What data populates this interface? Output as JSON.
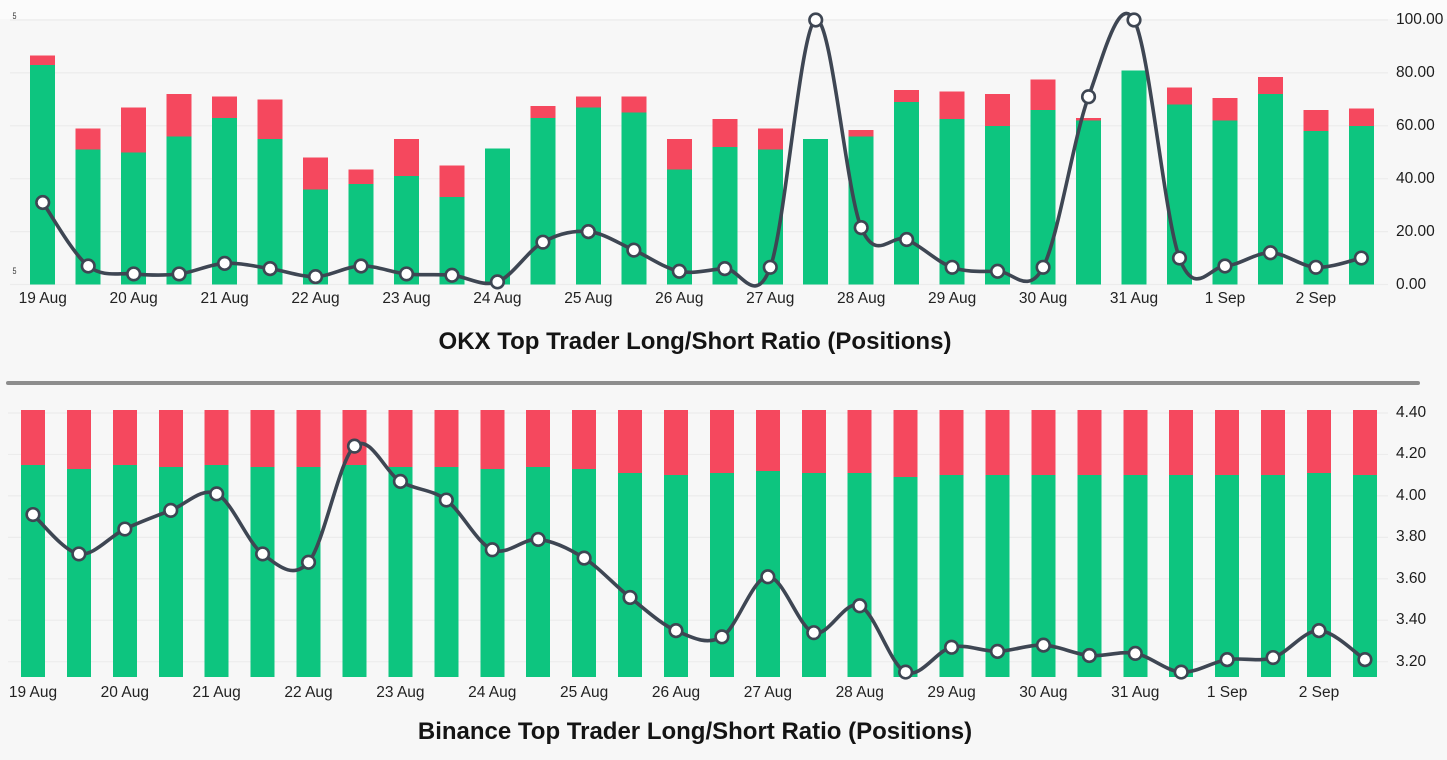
{
  "page": {
    "background": "#f7f7f7",
    "top_strip": "#fbfbfb"
  },
  "colors": {
    "long_green": "#0dc57f",
    "short_red": "#f5485e",
    "line": "#3e4653",
    "marker_fill": "#ffffff",
    "grid": "#ececec",
    "axis_text": "#1c1c1c",
    "title_text": "#141414",
    "divider": "#8d8d8d"
  },
  "axis_fragments": {
    "top": "5",
    "bottom": "5"
  },
  "chart_data": [
    {
      "id": "okx",
      "type": "bar",
      "subtype": "stacked-bars-with-line-overlay",
      "title": "OKX Top Trader Long/Short Ratio (Positions)",
      "x_tick_labels": [
        "19 Aug",
        "20 Aug",
        "21 Aug",
        "22 Aug",
        "23 Aug",
        "24 Aug",
        "25 Aug",
        "26 Aug",
        "27 Aug",
        "28 Aug",
        "29 Aug",
        "30 Aug",
        "31 Aug",
        "1 Sep",
        "2 Sep"
      ],
      "bars_per_x_label": 2,
      "ylim": [
        0,
        100
      ],
      "y_tick_labels": [
        "100.00",
        "80.00",
        "60.00",
        "40.00",
        "20.00",
        "0.00"
      ],
      "y_tick_values": [
        100,
        80,
        60,
        40,
        20,
        0
      ],
      "grid": true,
      "legend_position": "none",
      "series": [
        {
          "name": "Longs (green segment, %)",
          "type": "bar",
          "values": [
            83,
            51,
            50,
            56,
            63,
            55,
            36,
            38,
            41,
            33,
            51.5,
            63,
            67,
            65,
            43.5,
            52,
            51,
            55,
            56,
            69,
            62.5,
            60,
            66,
            62,
            81,
            68,
            62,
            72,
            58,
            60
          ]
        },
        {
          "name": "Shorts (red segment, %)",
          "type": "bar",
          "values": [
            3.5,
            8,
            17,
            16,
            8,
            15,
            12,
            5.5,
            14,
            12,
            0,
            4.5,
            4,
            6,
            11.5,
            10.5,
            8,
            0,
            2.5,
            4.5,
            10.5,
            12,
            11.5,
            1,
            0,
            6.5,
            8.5,
            6.5,
            8,
            6.5
          ]
        },
        {
          "name": "Top trader ratio line",
          "type": "line",
          "values": [
            31,
            7,
            4,
            4,
            8,
            6,
            3,
            7,
            4,
            3.5,
            1,
            16,
            20,
            13,
            5,
            6,
            6.5,
            100,
            21.5,
            17,
            6.5,
            5,
            6.5,
            71,
            100,
            10,
            7,
            12,
            6.5,
            10
          ]
        }
      ]
    },
    {
      "id": "binance",
      "type": "bar",
      "subtype": "full-height-stacked-bars-with-line-overlay",
      "title": "Binance Top Trader Long/Short Ratio (Positions)",
      "x_tick_labels": [
        "19 Aug",
        "20 Aug",
        "21 Aug",
        "22 Aug",
        "23 Aug",
        "24 Aug",
        "25 Aug",
        "26 Aug",
        "27 Aug",
        "28 Aug",
        "29 Aug",
        "30 Aug",
        "31 Aug",
        "1 Sep",
        "2 Sep"
      ],
      "bars_per_x_label": 2,
      "ylim": [
        3.12,
        4.42
      ],
      "y_tick_labels": [
        "4.40",
        "4.20",
        "4.00",
        "3.80",
        "3.60",
        "3.40",
        "3.20"
      ],
      "y_tick_values": [
        4.4,
        4.2,
        4.0,
        3.8,
        3.6,
        3.4,
        3.2
      ],
      "bar_top": 4.414,
      "bar_bottom": 3.127,
      "grid": true,
      "legend_position": "none",
      "series": [
        {
          "name": "Green/red split level (axis units)",
          "type": "bar-split",
          "values": [
            4.15,
            4.13,
            4.15,
            4.14,
            4.15,
            4.14,
            4.14,
            4.15,
            4.14,
            4.14,
            4.13,
            4.14,
            4.13,
            4.11,
            4.1,
            4.11,
            4.12,
            4.11,
            4.11,
            4.09,
            4.1,
            4.1,
            4.1,
            4.1,
            4.1,
            4.1,
            4.1,
            4.1,
            4.11,
            4.1
          ]
        },
        {
          "name": "Top trader ratio line",
          "type": "line",
          "values": [
            3.91,
            3.72,
            3.84,
            3.93,
            4.01,
            3.72,
            3.68,
            4.24,
            4.07,
            3.98,
            3.74,
            3.79,
            3.7,
            3.51,
            3.35,
            3.32,
            3.61,
            3.34,
            3.47,
            3.15,
            3.27,
            3.25,
            3.28,
            3.23,
            3.24,
            3.15,
            3.21,
            3.22,
            3.35,
            3.21
          ]
        }
      ]
    }
  ]
}
